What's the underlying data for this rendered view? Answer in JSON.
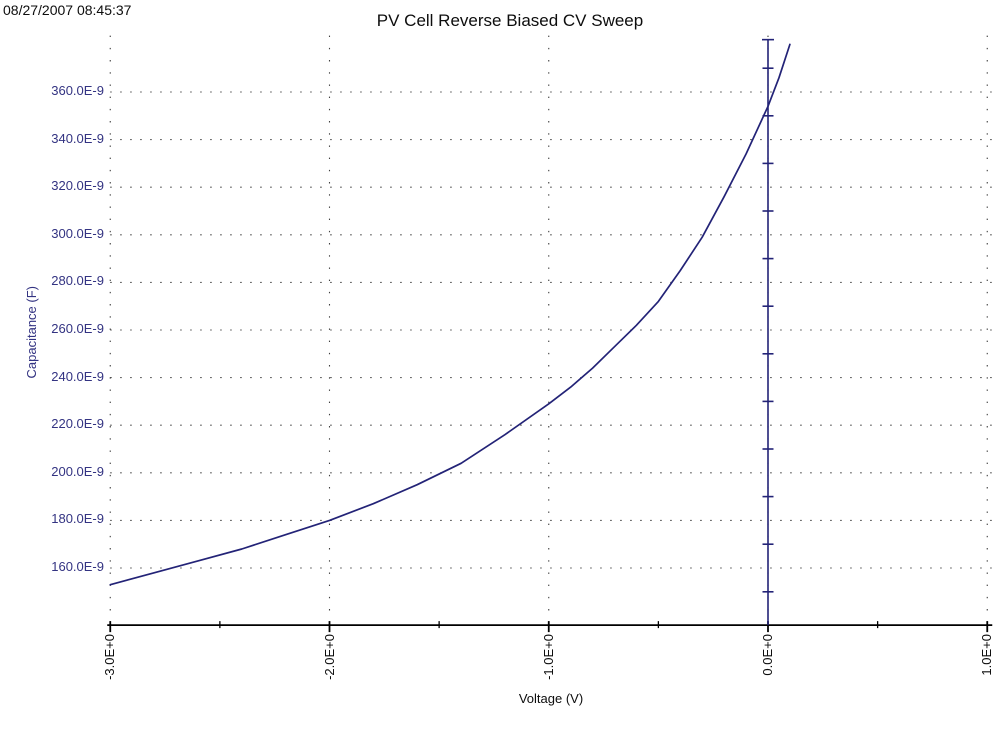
{
  "timestamp": "08/27/2007 08:45:37",
  "colors": {
    "navy_text": "#333382",
    "navy_line": "#232377",
    "black": "#0d0d0d",
    "grid_dot": "#3f3f3f",
    "background": "#ffffff"
  },
  "chart_data": {
    "type": "line",
    "title": "PV Cell Reverse Biased CV Sweep",
    "xlabel": "Voltage (V)",
    "ylabel": "Capacitance (F)",
    "grid": "dotted",
    "legend": "none",
    "x_unit": "V",
    "y_unit": "F",
    "xlim": [
      -3.0,
      1.0
    ],
    "ylim_nF": [
      136,
      382
    ],
    "x_ticks": [
      {
        "value": -3,
        "label": "-3.0E+0"
      },
      {
        "value": -2,
        "label": "-2.0E+0"
      },
      {
        "value": -1,
        "label": "-1.0E+0"
      },
      {
        "value": 0,
        "label": "0.0E+0"
      },
      {
        "value": 1,
        "label": "1.0E+0"
      }
    ],
    "x_minor_ticks": [
      -2.5,
      -1.5,
      -0.5,
      0.5
    ],
    "y_ticks": [
      {
        "value": 160,
        "label": "160.0E-9"
      },
      {
        "value": 180,
        "label": "180.0E-9"
      },
      {
        "value": 200,
        "label": "200.0E-9"
      },
      {
        "value": 220,
        "label": "220.0E-9"
      },
      {
        "value": 240,
        "label": "240.0E-9"
      },
      {
        "value": 260,
        "label": "260.0E-9"
      },
      {
        "value": 280,
        "label": "280.0E-9"
      },
      {
        "value": 300,
        "label": "300.0E-9"
      },
      {
        "value": 320,
        "label": "320.0E-9"
      },
      {
        "value": 340,
        "label": "340.0E-9"
      },
      {
        "value": 360,
        "label": "360.0E-9"
      }
    ],
    "zero_axis": {
      "at_x": 0,
      "minor_tick_values_nF": [
        150,
        170,
        190,
        210,
        230,
        250,
        270,
        290,
        310,
        330,
        350,
        370
      ]
    },
    "series": [
      {
        "name": "CV sweep",
        "points_V_nF": [
          [
            -3.0,
            153
          ],
          [
            -2.8,
            158
          ],
          [
            -2.6,
            163
          ],
          [
            -2.4,
            168
          ],
          [
            -2.2,
            174
          ],
          [
            -2.0,
            180
          ],
          [
            -1.8,
            187
          ],
          [
            -1.6,
            195
          ],
          [
            -1.4,
            204
          ],
          [
            -1.2,
            216
          ],
          [
            -1.0,
            229
          ],
          [
            -0.9,
            236
          ],
          [
            -0.8,
            244
          ],
          [
            -0.7,
            253
          ],
          [
            -0.6,
            262
          ],
          [
            -0.5,
            272
          ],
          [
            -0.4,
            285
          ],
          [
            -0.3,
            299
          ],
          [
            -0.2,
            316
          ],
          [
            -0.1,
            334
          ],
          [
            0.0,
            354
          ],
          [
            0.05,
            366
          ],
          [
            0.1,
            380
          ]
        ]
      }
    ]
  }
}
